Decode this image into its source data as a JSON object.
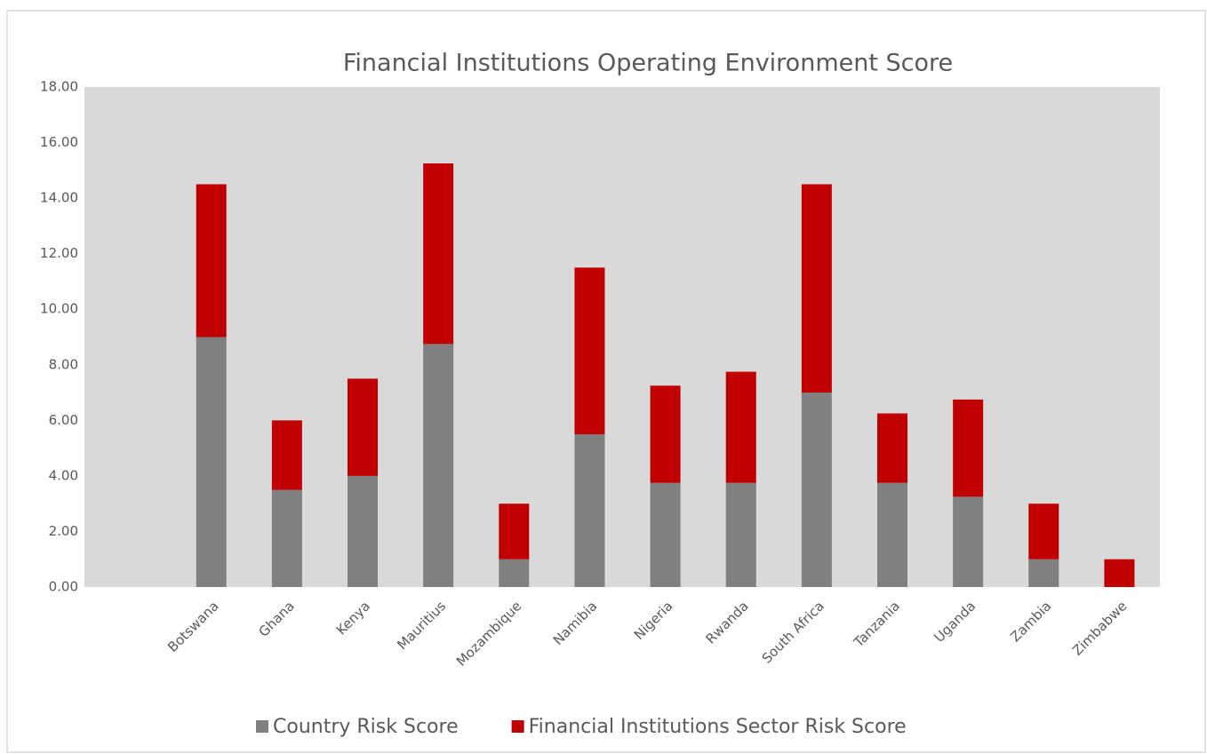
{
  "chart_data": {
    "type": "bar",
    "stacked": true,
    "title": "Financial Institutions Operating Environment Score",
    "categories": [
      null,
      "Botswana",
      "Ghana",
      "Kenya",
      "Mauritius",
      "Mozambique",
      "Namibia",
      "Nigeria",
      "Rwanda",
      "South Africa",
      "Tanzania",
      "Uganda",
      "Zambia",
      "Zimbabwe"
    ],
    "series": [
      {
        "name": "Country Risk Score",
        "color": "#808080",
        "values": [
          null,
          9,
          3.5,
          4,
          8.75,
          1,
          5.5,
          3.75,
          3.75,
          7,
          3.75,
          3.25,
          1,
          0
        ]
      },
      {
        "name": "Financial Institutions Sector Risk Score",
        "color": "#c00000",
        "values": [
          null,
          5.5,
          2.5,
          3.5,
          6.5,
          2,
          6,
          3.5,
          4,
          7.5,
          2.5,
          3.5,
          2,
          1
        ]
      }
    ],
    "ylim": [
      0,
      18
    ],
    "yticks": [
      {
        "value": 0,
        "label": "0.00"
      },
      {
        "value": 2,
        "label": "2.00"
      },
      {
        "value": 4,
        "label": "4.00"
      },
      {
        "value": 6,
        "label": "6.00"
      },
      {
        "value": 8,
        "label": "8.00"
      },
      {
        "value": 10,
        "label": "10.00"
      },
      {
        "value": 12,
        "label": "12.00"
      },
      {
        "value": 14,
        "label": "14.00"
      },
      {
        "value": 16,
        "label": "16.00"
      },
      {
        "value": 18,
        "label": "18.00"
      }
    ],
    "plot_background": "#d9d9d9",
    "legend": "bottom"
  }
}
